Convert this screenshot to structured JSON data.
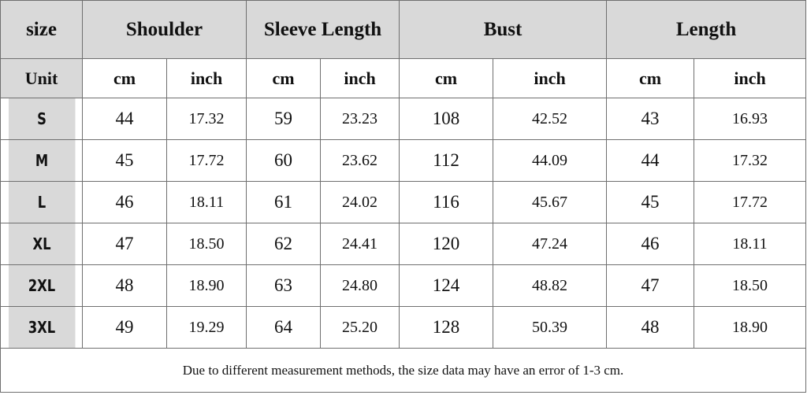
{
  "header": {
    "size_label": "size",
    "columns": [
      "Shoulder",
      "Sleeve Length",
      "Bust",
      "Length"
    ]
  },
  "units": {
    "label": "Unit",
    "cm": "cm",
    "inch": "inch"
  },
  "rows": [
    {
      "size": "S",
      "values": [
        "44",
        "17.32",
        "59",
        "23.23",
        "108",
        "42.52",
        "43",
        "16.93"
      ]
    },
    {
      "size": "M",
      "values": [
        "45",
        "17.72",
        "60",
        "23.62",
        "112",
        "44.09",
        "44",
        "17.32"
      ]
    },
    {
      "size": "L",
      "values": [
        "46",
        "18.11",
        "61",
        "24.02",
        "116",
        "45.67",
        "45",
        "17.72"
      ]
    },
    {
      "size": "XL",
      "values": [
        "47",
        "18.50",
        "62",
        "24.41",
        "120",
        "47.24",
        "46",
        "18.11"
      ]
    },
    {
      "size": "2XL",
      "values": [
        "48",
        "18.90",
        "63",
        "24.80",
        "124",
        "48.82",
        "47",
        "18.50"
      ]
    },
    {
      "size": "3XL",
      "values": [
        "49",
        "19.29",
        "64",
        "25.20",
        "128",
        "50.39",
        "48",
        "18.90"
      ]
    }
  ],
  "note": "Due to different measurement methods, the size data may have an error of 1-3 cm.",
  "colors": {
    "header_bg": "#d9d9d9",
    "border": "#6f6f6f",
    "text": "#111111"
  }
}
